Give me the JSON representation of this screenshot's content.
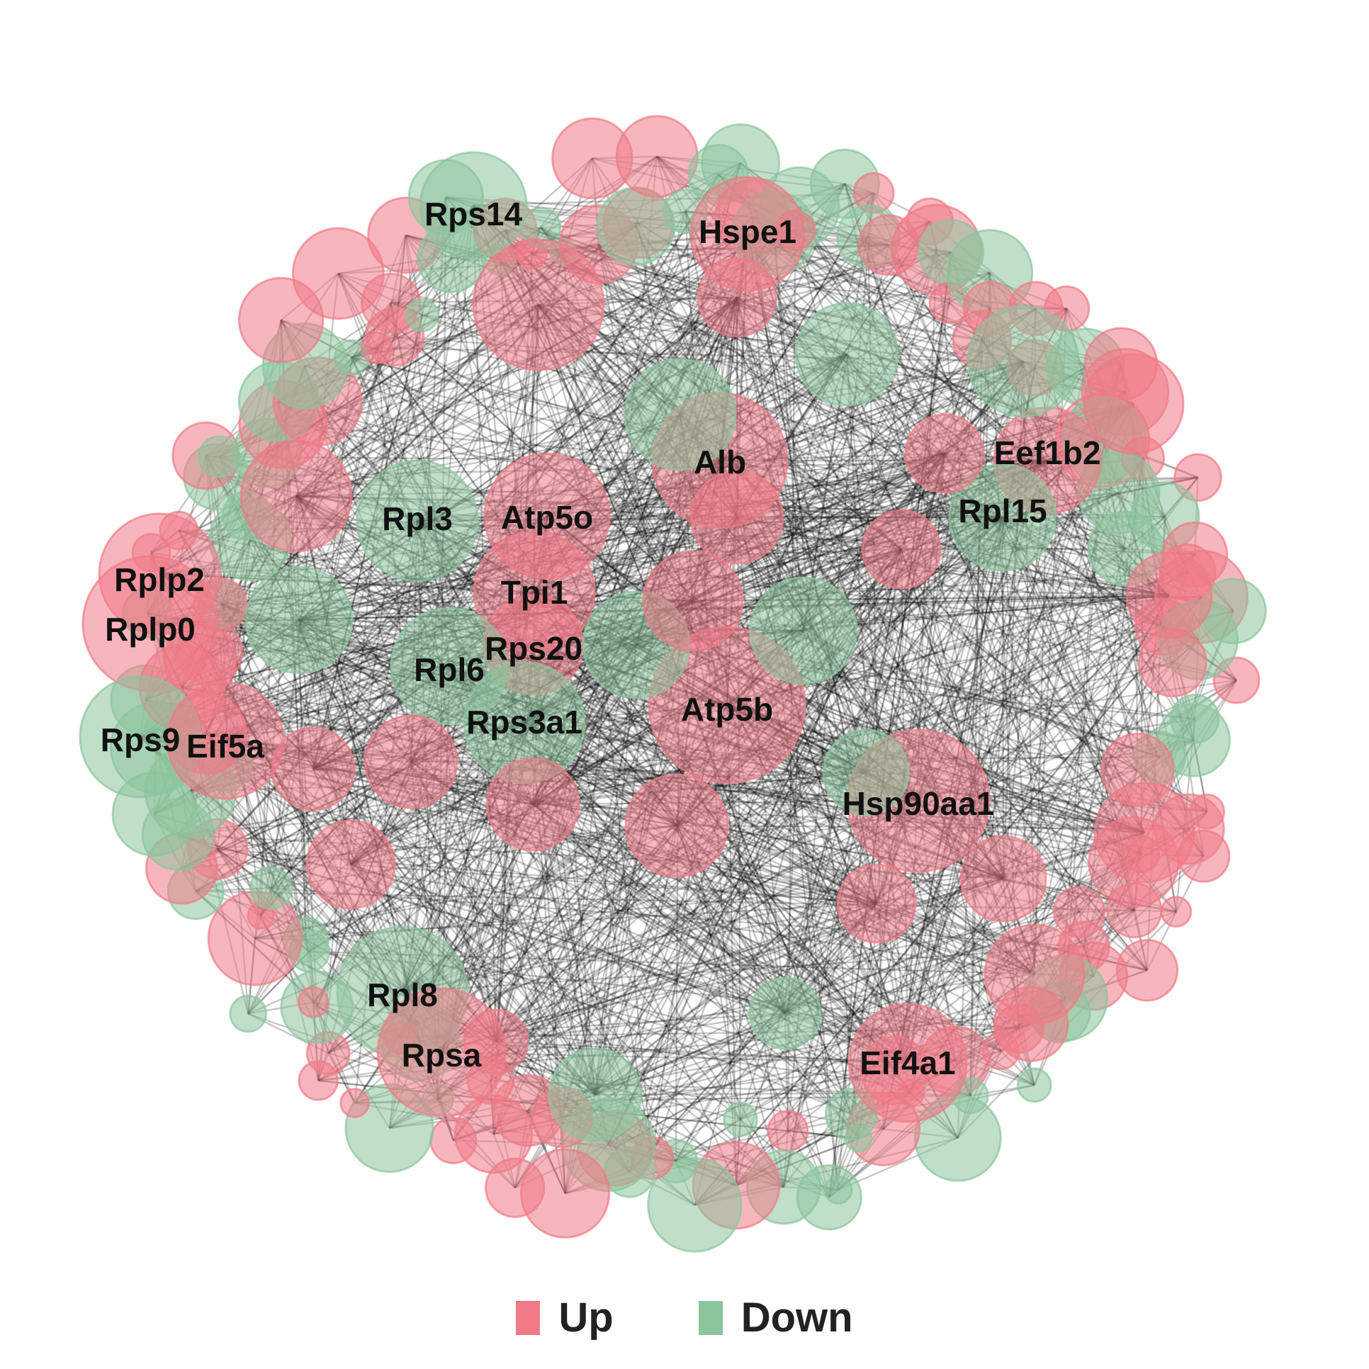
{
  "legend": {
    "up_label": "Up",
    "down_label": "Down"
  },
  "colors": {
    "up": "#f07a86",
    "down": "#8cc59d",
    "edge": "#000000",
    "background": "#ffffff"
  },
  "network": {
    "labels": {
      "rps14": "Rps14",
      "hspe1": "Hspe1",
      "alb": "Alb",
      "eef1b2": "Eef1b2",
      "rpl15": "Rpl15",
      "rpl3": "Rpl3",
      "atp5o": "Atp5o",
      "tpi1": "Tpi1",
      "rplp2": "Rplp2",
      "rplp0": "Rplp0",
      "rps20": "Rps20",
      "rpl6": "Rpl6",
      "atp5b": "Atp5b",
      "rps3a1": "Rps3a1",
      "rps9": "Rps9",
      "eif5a": "Eif5a",
      "hsp90aa1": "Hsp90aa1",
      "rpl8": "Rpl8",
      "rpsa": "Rpsa",
      "eif4a1": "Eif4a1"
    }
  }
}
